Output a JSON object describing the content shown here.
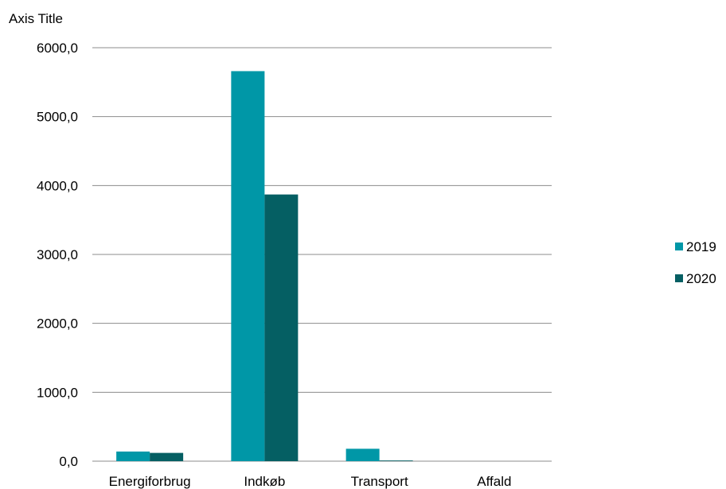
{
  "chart_data": {
    "type": "bar",
    "title": "",
    "ylabel": "Axis Title",
    "xlabel": "",
    "categories": [
      "Energiforbrug",
      "Indkøb",
      "Transport",
      "Affald"
    ],
    "ylim": [
      0,
      6000
    ],
    "yticks": [
      0,
      1000,
      2000,
      3000,
      4000,
      5000,
      6000
    ],
    "ytick_labels": [
      "0,0",
      "1000,0",
      "2000,0",
      "3000,0",
      "4000,0",
      "5000,0",
      "6000,0"
    ],
    "grid": true,
    "legend_position": "right",
    "series": [
      {
        "name": "2019",
        "color": "#0097A7",
        "values": [
          140,
          5660,
          180,
          0
        ]
      },
      {
        "name": "2020",
        "color": "#055F63",
        "values": [
          120,
          3870,
          10,
          0
        ]
      }
    ]
  }
}
